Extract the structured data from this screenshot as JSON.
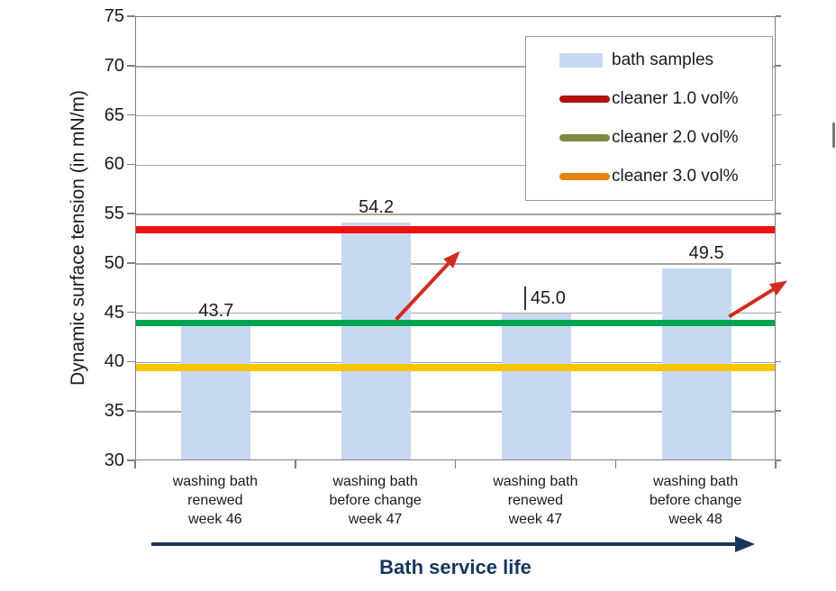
{
  "chart_data": {
    "type": "bar",
    "title": "",
    "ylabel": "Dynamic surface tension (in mN/m)",
    "xlabel": "Bath service life",
    "ylim": [
      30,
      75
    ],
    "ytick_step": 5,
    "grid": true,
    "legend_position": "top-right",
    "categories": [
      "washing bath\nrenewed\nweek 46",
      "washing bath\nbefore change\nweek 47",
      "washing bath\nrenewed\nweek 47",
      "washing bath\nbefore change\nweek 48"
    ],
    "values": [
      43.7,
      54.2,
      45.0,
      49.5
    ],
    "bar_labels": [
      "43.7",
      "54.2",
      "45.0",
      "49.5"
    ],
    "bar_color": "#c6d9f0",
    "ref_lines": [
      {
        "name": "cleaner 1.0 vol%",
        "value": 53.5,
        "color": "#ee1111",
        "thickness": 8
      },
      {
        "name": "cleaner 2.0 vol%",
        "value": 44.0,
        "color": "#00a550",
        "thickness": 7
      },
      {
        "name": "cleaner 3.0 vol%",
        "value": 39.5,
        "color": "#fcc400",
        "thickness": 8
      }
    ],
    "legend": [
      {
        "label": "bath samples",
        "swatch": "rect",
        "color": "#c6d9f0"
      },
      {
        "label": "cleaner 1.0 vol%",
        "swatch": "line",
        "color": "#b01212"
      },
      {
        "label": "cleaner 2.0 vol%",
        "swatch": "line",
        "color": "#7a8c42"
      },
      {
        "label": "cleaner 3.0 vol%",
        "swatch": "line",
        "color": "#e8820e"
      }
    ],
    "annotations": [
      {
        "type": "arrow",
        "color": "#d22b20",
        "from_x": 0.78,
        "from_y": 46.0,
        "to_x": 1.16,
        "to_y": 52.6
      },
      {
        "type": "arrow",
        "color": "#d22b20",
        "from_x": 2.86,
        "from_y": 46.3,
        "to_x": 3.2,
        "to_y": 49.7
      }
    ],
    "x_axis_arrow_color": "#17365d",
    "axis_color": "#7f7f7f",
    "grid_color": "#a6a6a6",
    "text_color": "#1a1a1a"
  }
}
